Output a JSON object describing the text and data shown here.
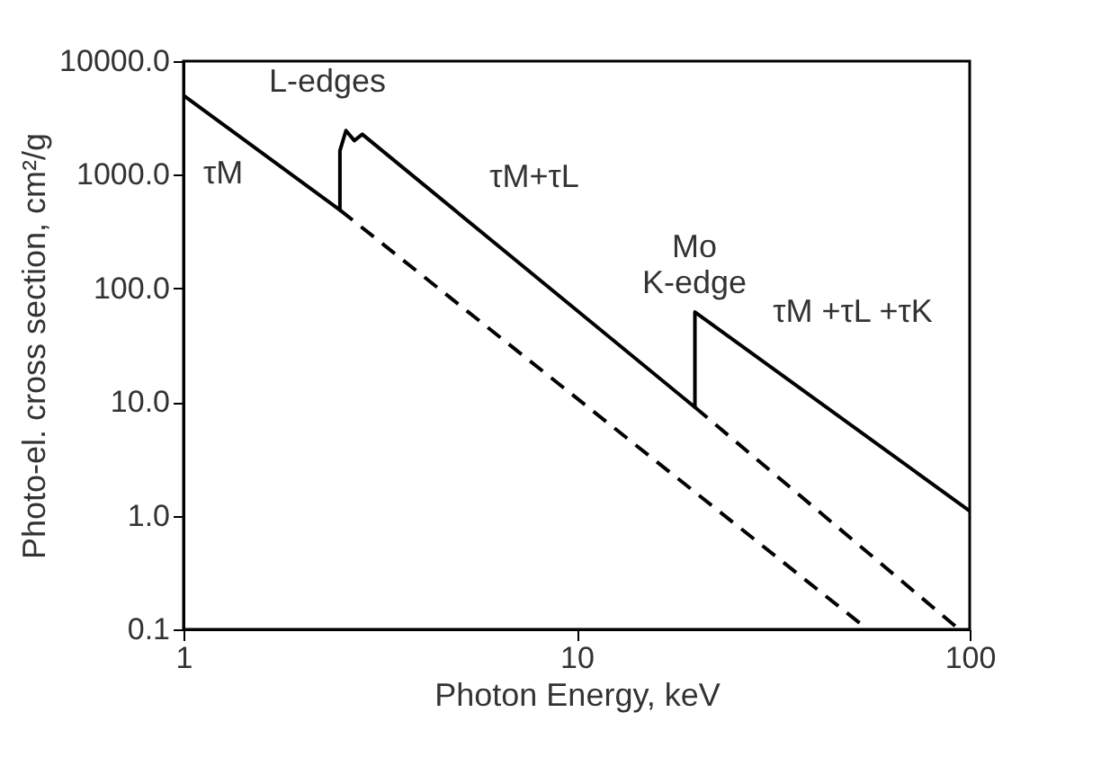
{
  "chart_data": {
    "type": "line",
    "xlabel": "Photon Energy, keV",
    "ylabel": "Photo-el. cross section, cm²/g",
    "log": "xy",
    "grid": false,
    "marker": "none",
    "xlim": [
      1,
      100
    ],
    "xticks": [
      1,
      10,
      100
    ],
    "ylim": [
      0.1,
      10000
    ],
    "yticks": [
      {
        "value": 0.1,
        "label": "0.1"
      },
      {
        "value": 1,
        "label": "1.0"
      },
      {
        "value": 10,
        "label": "10.0"
      },
      {
        "value": 100,
        "label": "100.0"
      },
      {
        "value": 1000,
        "label": "1000.0"
      },
      {
        "value": 10000,
        "label": "10000.0"
      }
    ],
    "series": [
      {
        "color": "#000000",
        "line_style": "solid",
        "x": [
          1,
          2.5,
          2.5,
          2.59,
          2.72,
          2.85,
          20,
          20,
          100
        ],
        "values": [
          5000,
          490,
          1630,
          2450,
          2000,
          2270,
          9,
          62,
          1.1
        ]
      },
      {
        "color": "#000000",
        "line_style": "dashed",
        "x": [
          2.5,
          55
        ],
        "values": [
          490,
          0.1
        ]
      },
      {
        "color": "#000000",
        "line_style": "dashed",
        "x": [
          20,
          94
        ],
        "values": [
          9,
          0.1
        ]
      }
    ],
    "annotations": [
      "τM",
      "L-edges",
      "τM+τL",
      "Mo\nK-edge",
      "τM +τL +τK"
    ]
  }
}
